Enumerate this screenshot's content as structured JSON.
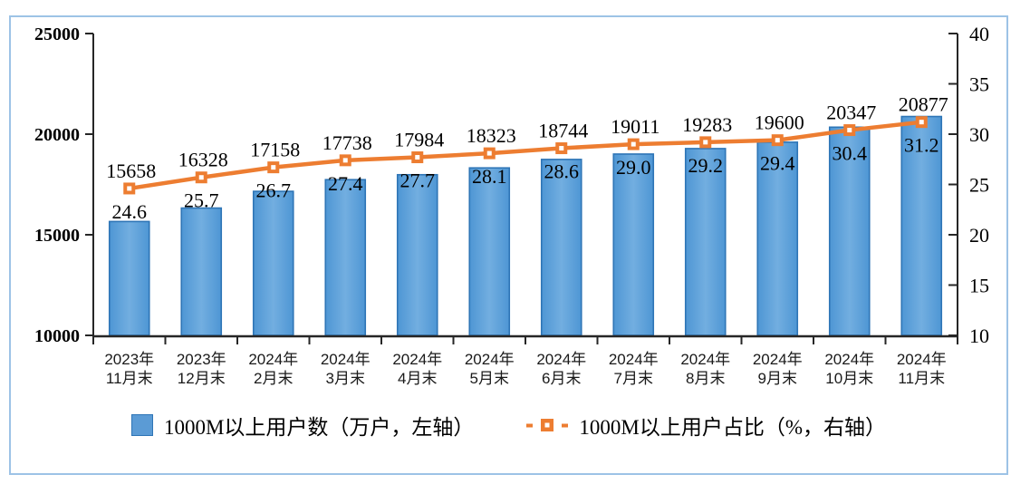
{
  "chart_data": {
    "type": "bar+line",
    "categories": [
      "2023年\n11月末",
      "2023年\n12月末",
      "2024年\n2月末",
      "2024年\n3月末",
      "2024年\n4月末",
      "2024年\n5月末",
      "2024年\n6月末",
      "2024年\n7月末",
      "2024年\n8月末",
      "2024年\n9月末",
      "2024年\n10月末",
      "2024年\n11月末"
    ],
    "series": [
      {
        "name": "1000M以上用户数（万户，左轴）",
        "type": "bar",
        "axis": "left",
        "values": [
          15658,
          16328,
          17158,
          17738,
          17984,
          18323,
          18744,
          19011,
          19283,
          19600,
          20347,
          20877
        ],
        "fill_color": "#5B9BD5",
        "fill_gradient": [
          "#4E96D4",
          "#72AEE0",
          "#4E96D4"
        ],
        "border_color": "#2E75B6"
      },
      {
        "name": "1000M以上用户占比（%，右轴）",
        "type": "line",
        "axis": "right",
        "values": [
          24.6,
          25.7,
          26.7,
          27.4,
          27.7,
          28.1,
          28.6,
          29.0,
          29.2,
          29.4,
          30.4,
          31.2
        ],
        "color": "#ED7D31",
        "marker": "square-with-white-center"
      }
    ],
    "left_axis": {
      "min": 10000,
      "max": 25000,
      "ticks": [
        10000,
        15000,
        20000,
        25000
      ]
    },
    "right_axis": {
      "min": 10,
      "max": 40,
      "ticks": [
        10,
        15,
        20,
        25,
        30,
        35,
        40
      ]
    },
    "gridlines": false,
    "legend_position": "bottom",
    "data_labels": "value above line point, percent below line point",
    "frame_border_color": "#9DC3E6",
    "background_color": "#FFFFFF",
    "axis_color": "#262626",
    "text_color": "#000000"
  }
}
